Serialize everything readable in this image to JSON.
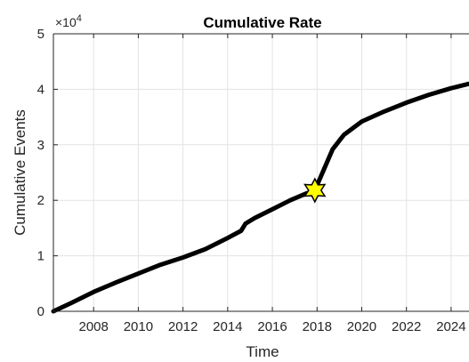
{
  "chart_data": {
    "type": "line",
    "title": "Cumulative Rate",
    "xlabel": "Time",
    "ylabel": "Cumulative Events",
    "y_exponent_base": "×10",
    "y_exponent_power": "4",
    "xlim": [
      2006.2,
      2024.8
    ],
    "ylim": [
      0,
      5
    ],
    "x_ticks": [
      2008,
      2010,
      2012,
      2014,
      2016,
      2018,
      2020,
      2022,
      2024
    ],
    "x_tick_labels": [
      "2008",
      "2010",
      "2012",
      "2014",
      "2016",
      "2018",
      "2020",
      "2022",
      "2024"
    ],
    "y_ticks": [
      0,
      1,
      2,
      3,
      4,
      5
    ],
    "y_tick_labels": [
      "0",
      "1",
      "2",
      "3",
      "4",
      "5"
    ],
    "grid": true,
    "series": [
      {
        "color": "#000000",
        "x": [
          2006.2,
          2007,
          2008,
          2009,
          2010,
          2011,
          2012,
          2013,
          2014,
          2014.6,
          2014.8,
          2015.2,
          2016,
          2016.8,
          2017.5,
          2017.9,
          2018.3,
          2018.7,
          2019.2,
          2020,
          2021,
          2022,
          2023,
          2024,
          2024.8
        ],
        "y": [
          0,
          0.15,
          0.35,
          0.52,
          0.68,
          0.84,
          0.97,
          1.12,
          1.32,
          1.45,
          1.58,
          1.68,
          1.84,
          2.0,
          2.12,
          2.18,
          2.55,
          2.92,
          3.18,
          3.42,
          3.6,
          3.76,
          3.9,
          4.02,
          4.1
        ]
      }
    ],
    "annotations": [
      {
        "type": "star-marker",
        "x": 2017.9,
        "y": 2.18,
        "fill": "#ffff00",
        "edge": "#000000"
      }
    ]
  }
}
